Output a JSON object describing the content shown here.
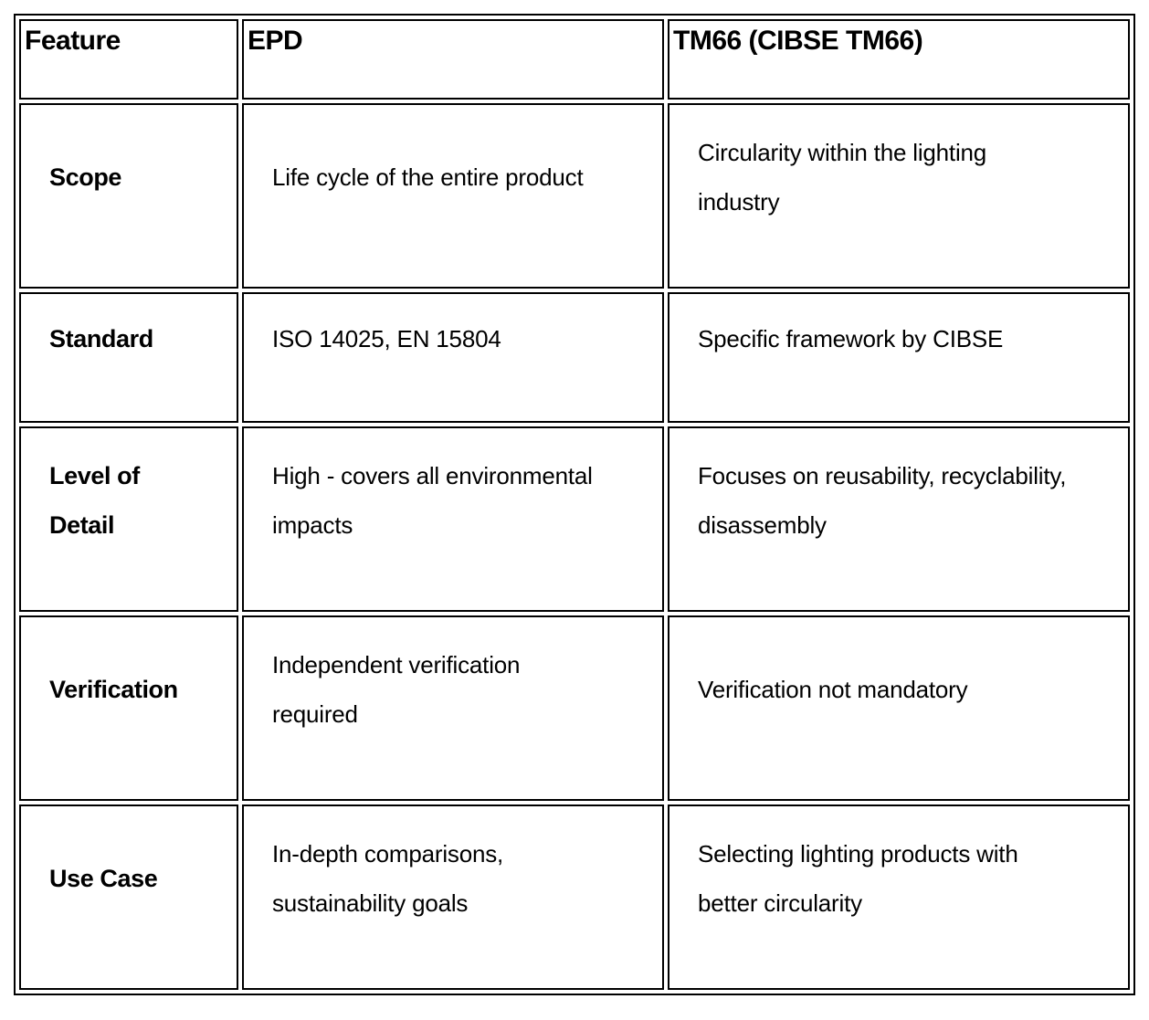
{
  "table": {
    "title_semantic": "EPD vs TM66 comparison table",
    "colors": {
      "border": "#000000",
      "text": "#000000",
      "background": "#ffffff"
    },
    "headers": {
      "feature": "Feature",
      "epd": "EPD",
      "tm66": "TM66 (CIBSE TM66)"
    },
    "rows": [
      {
        "feature": "Scope",
        "epd": "Life cycle of the entire product",
        "tm66": "Circularity within the lighting\nindustry"
      },
      {
        "feature": "Standard",
        "epd": "ISO 14025, EN 15804",
        "tm66": "Specific framework by CIBSE"
      },
      {
        "feature": "Level of\nDetail",
        "epd": "High - covers all environmental\nimpacts",
        "tm66": "Focuses on reusability, recyclability,\ndisassembly"
      },
      {
        "feature": "Verification",
        "epd": "Independent verification\nrequired",
        "tm66": "Verification not mandatory"
      },
      {
        "feature": "Use Case",
        "epd": "In-depth comparisons,\nsustainability goals",
        "tm66": "Selecting lighting products with\nbetter circularity"
      }
    ]
  }
}
